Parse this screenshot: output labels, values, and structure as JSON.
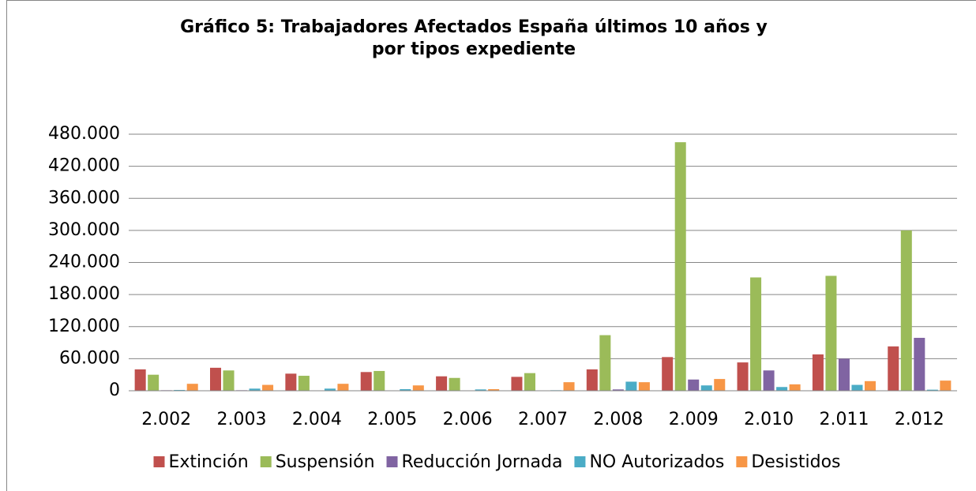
{
  "chart_data": {
    "type": "bar",
    "title": [
      "Gráfico 5:  Trabajadores Afectados España últimos 10 años y",
      "por tipos expediente"
    ],
    "categories": [
      "2.002",
      "2.003",
      "2.004",
      "2.005",
      "2.006",
      "2.007",
      "2.008",
      "2.009",
      "2.010",
      "2.011",
      "2.012"
    ],
    "series": [
      {
        "name": "Extinción",
        "color": "#c0504d",
        "values": [
          40000,
          43000,
          32000,
          35000,
          27000,
          26000,
          40000,
          63000,
          53000,
          68000,
          83000
        ]
      },
      {
        "name": "Suspensión",
        "color": "#9bbb59",
        "values": [
          30000,
          38000,
          28000,
          37000,
          24000,
          33000,
          104000,
          465000,
          212000,
          215000,
          300000
        ]
      },
      {
        "name": "Reducción Jornada",
        "color": "#8064a2",
        "values": [
          1000,
          1000,
          500,
          500,
          500,
          500,
          2500,
          21000,
          38000,
          60000,
          99000
        ]
      },
      {
        "name": "NO Autorizados",
        "color": "#4bacc6",
        "values": [
          1500,
          4000,
          4000,
          3000,
          2500,
          1000,
          17000,
          10000,
          7000,
          11000,
          2000
        ]
      },
      {
        "name": "Desistidos",
        "color": "#f79646",
        "values": [
          13000,
          11000,
          13000,
          10000,
          3000,
          16000,
          16000,
          22000,
          12000,
          18000,
          19000
        ]
      }
    ],
    "ylim": [
      0,
      480000
    ],
    "yticks": [
      0,
      {
        "value": 60000,
        "label": "60.000"
      },
      {
        "value": 120000,
        "label": "120.000"
      },
      {
        "value": 180000,
        "label": "180.000"
      },
      {
        "value": 240000,
        "label": "240.000"
      },
      {
        "value": 300000,
        "label": "300.000"
      },
      {
        "value": 360000,
        "label": "360.000"
      },
      {
        "value": 420000,
        "label": "420.000"
      },
      {
        "value": 480000,
        "label": "480.000"
      }
    ],
    "grid": true,
    "legend": "bottom"
  }
}
